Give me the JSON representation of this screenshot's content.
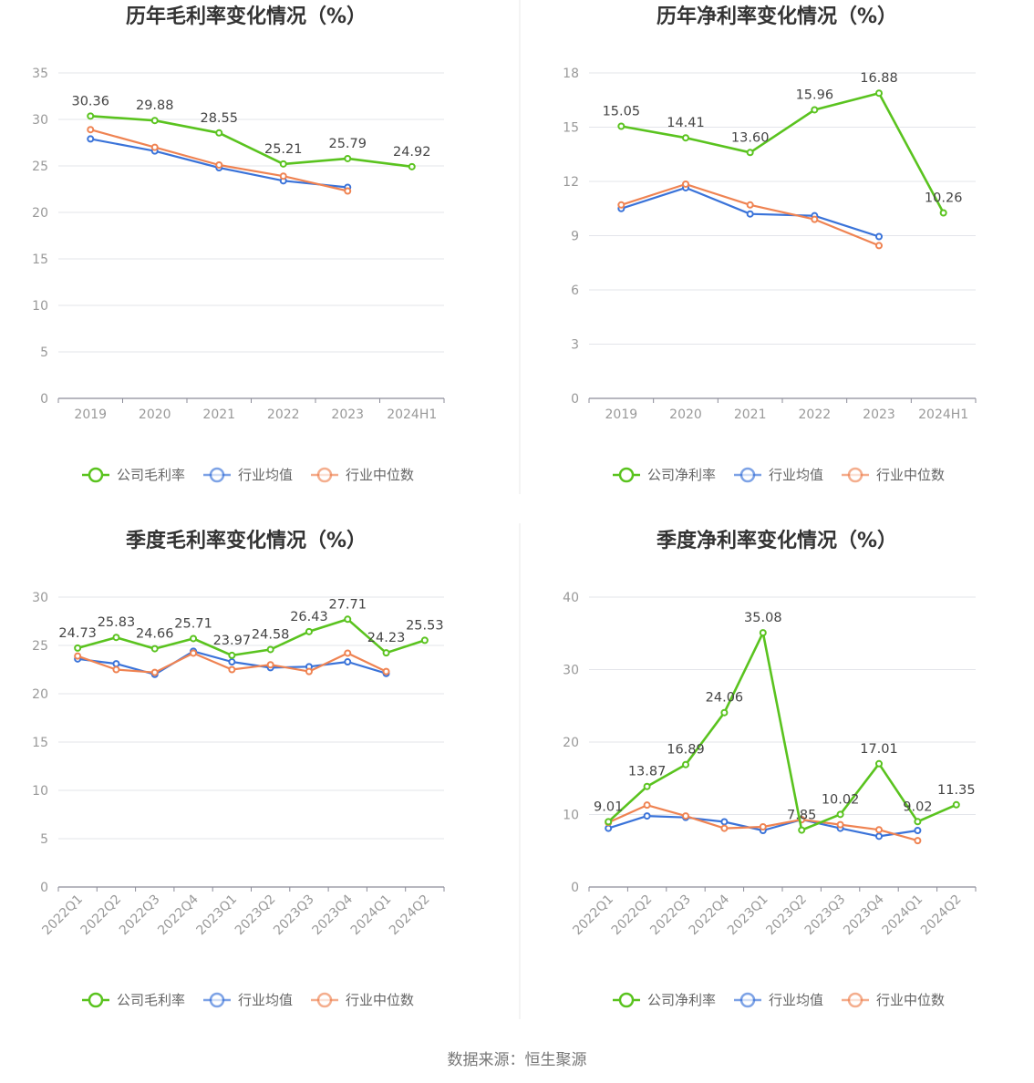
{
  "source_text": "数据来源：恒生聚源",
  "colors": {
    "company": "#5ac31f",
    "industry_avg": "#3a73d9",
    "industry_median": "#ef8352",
    "grid": "#e3e5ea",
    "axis": "#8c8c99"
  },
  "chart_data": [
    {
      "type": "line",
      "title": "历年毛利率变化情况（%）",
      "categories": [
        "2019",
        "2020",
        "2021",
        "2022",
        "2023",
        "2024H1"
      ],
      "ylim": [
        0,
        35
      ],
      "yticks": [
        0,
        5,
        10,
        15,
        20,
        25,
        30,
        35
      ],
      "x_tick_rotation": "none",
      "grid": true,
      "legend_position": "bottom",
      "series": [
        {
          "name": "公司毛利率",
          "role": "company",
          "values": [
            30.36,
            29.88,
            28.55,
            25.21,
            25.79,
            24.92
          ],
          "labels": [
            "30.36",
            "29.88",
            "28.55",
            "25.21",
            "25.79",
            "24.92"
          ]
        },
        {
          "name": "行业均值",
          "role": "industry_avg",
          "values": [
            27.9,
            26.6,
            24.8,
            23.4,
            22.7,
            null
          ]
        },
        {
          "name": "行业中位数",
          "role": "industry_median",
          "values": [
            28.9,
            27.0,
            25.1,
            23.9,
            22.3,
            null
          ]
        }
      ]
    },
    {
      "type": "line",
      "title": "历年净利率变化情况（%）",
      "categories": [
        "2019",
        "2020",
        "2021",
        "2022",
        "2023",
        "2024H1"
      ],
      "ylim": [
        0,
        18
      ],
      "yticks": [
        0,
        3,
        6,
        9,
        12,
        15,
        18
      ],
      "x_tick_rotation": "none",
      "grid": true,
      "legend_position": "bottom",
      "series": [
        {
          "name": "公司净利率",
          "role": "company",
          "values": [
            15.05,
            14.41,
            13.6,
            15.96,
            16.88,
            10.26
          ],
          "labels": [
            "15.05",
            "14.41",
            "13.60",
            "15.96",
            "16.88",
            "10.26"
          ]
        },
        {
          "name": "行业均值",
          "role": "industry_avg",
          "values": [
            10.5,
            11.65,
            10.2,
            10.1,
            8.95,
            null
          ]
        },
        {
          "name": "行业中位数",
          "role": "industry_median",
          "values": [
            10.7,
            11.85,
            10.7,
            9.9,
            8.45,
            null
          ]
        }
      ]
    },
    {
      "type": "line",
      "title": "季度毛利率变化情况（%）",
      "categories": [
        "2022Q1",
        "2022Q2",
        "2022Q3",
        "2022Q4",
        "2023Q1",
        "2023Q2",
        "2023Q3",
        "2023Q4",
        "2024Q1",
        "2024Q2"
      ],
      "ylim": [
        0,
        30
      ],
      "yticks": [
        0,
        5,
        10,
        15,
        20,
        25,
        30
      ],
      "x_tick_rotation": "rotated",
      "grid": true,
      "legend_position": "bottom",
      "series": [
        {
          "name": "公司毛利率",
          "role": "company",
          "values": [
            24.73,
            25.83,
            24.66,
            25.71,
            23.97,
            24.58,
            26.43,
            27.71,
            24.23,
            25.53
          ],
          "labels": [
            "24.73",
            "25.83",
            "24.66",
            "25.71",
            "23.97",
            "24.58",
            "26.43",
            "27.71",
            "24.23",
            "25.53"
          ]
        },
        {
          "name": "行业均值",
          "role": "industry_avg",
          "values": [
            23.6,
            23.1,
            22.0,
            24.4,
            23.3,
            22.7,
            22.8,
            23.3,
            22.1,
            null
          ]
        },
        {
          "name": "行业中位数",
          "role": "industry_median",
          "values": [
            23.9,
            22.5,
            22.2,
            24.2,
            22.5,
            23.0,
            22.3,
            24.2,
            22.3,
            null
          ]
        }
      ]
    },
    {
      "type": "line",
      "title": "季度净利率变化情况（%）",
      "categories": [
        "2022Q1",
        "2022Q2",
        "2022Q3",
        "2022Q4",
        "2023Q1",
        "2023Q2",
        "2023Q3",
        "2023Q4",
        "2024Q1",
        "2024Q2"
      ],
      "ylim": [
        0,
        40
      ],
      "yticks": [
        0,
        10,
        20,
        30,
        40
      ],
      "x_tick_rotation": "rotated",
      "grid": true,
      "legend_position": "bottom",
      "series": [
        {
          "name": "公司净利率",
          "role": "company",
          "values": [
            9.01,
            13.87,
            16.89,
            24.06,
            35.08,
            7.85,
            10.02,
            17.01,
            9.02,
            11.35
          ],
          "labels": [
            "9.01",
            "13.87",
            "16.89",
            "24.06",
            "35.08",
            "7.85",
            "10.02",
            "17.01",
            "9.02",
            "11.35"
          ]
        },
        {
          "name": "行业均值",
          "role": "industry_avg",
          "values": [
            8.1,
            9.8,
            9.6,
            9.0,
            7.8,
            9.3,
            8.1,
            7.0,
            7.8,
            null
          ]
        },
        {
          "name": "行业中位数",
          "role": "industry_median",
          "values": [
            8.9,
            11.3,
            9.8,
            8.1,
            8.3,
            9.3,
            8.6,
            7.9,
            6.4,
            null
          ]
        }
      ]
    }
  ]
}
